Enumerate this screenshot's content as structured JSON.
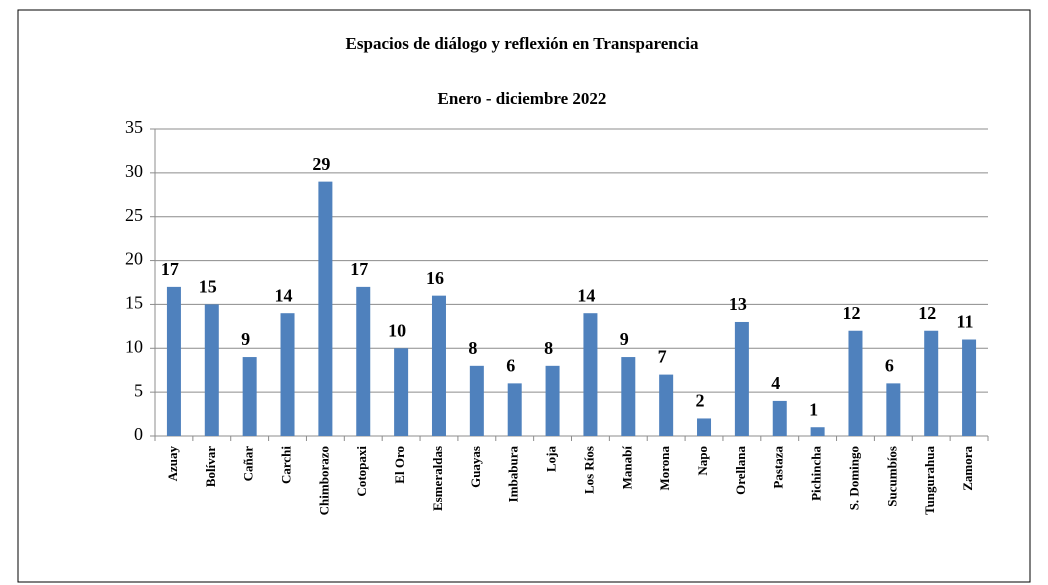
{
  "chart_data": {
    "type": "bar",
    "title": "Espacios de diálogo y reflexión en Transparencia",
    "subtitle": "Enero - diciembre 2022",
    "categories": [
      "Azuay",
      "Bolívar",
      "Cañar",
      "Carchi",
      "Chimborazo",
      "Cotopaxi",
      "El Oro",
      "Esmeraldas",
      "Guayas",
      "Imbabura",
      "Loja",
      "Los Ríos",
      "Manabí",
      "Morona",
      "Napo",
      "Orellana",
      "Pastaza",
      "Pichincha",
      "S. Domingo",
      "Sucumbíos",
      "Tungurahua",
      "Zamora"
    ],
    "values": [
      17,
      15,
      9,
      14,
      29,
      17,
      10,
      16,
      8,
      6,
      8,
      14,
      9,
      7,
      2,
      13,
      4,
      1,
      12,
      6,
      12,
      11
    ],
    "color": "#4f81bd",
    "ylim": [
      0,
      35
    ],
    "yticks": [
      0,
      5,
      10,
      15,
      20,
      25,
      30,
      35
    ],
    "grid": true
  }
}
